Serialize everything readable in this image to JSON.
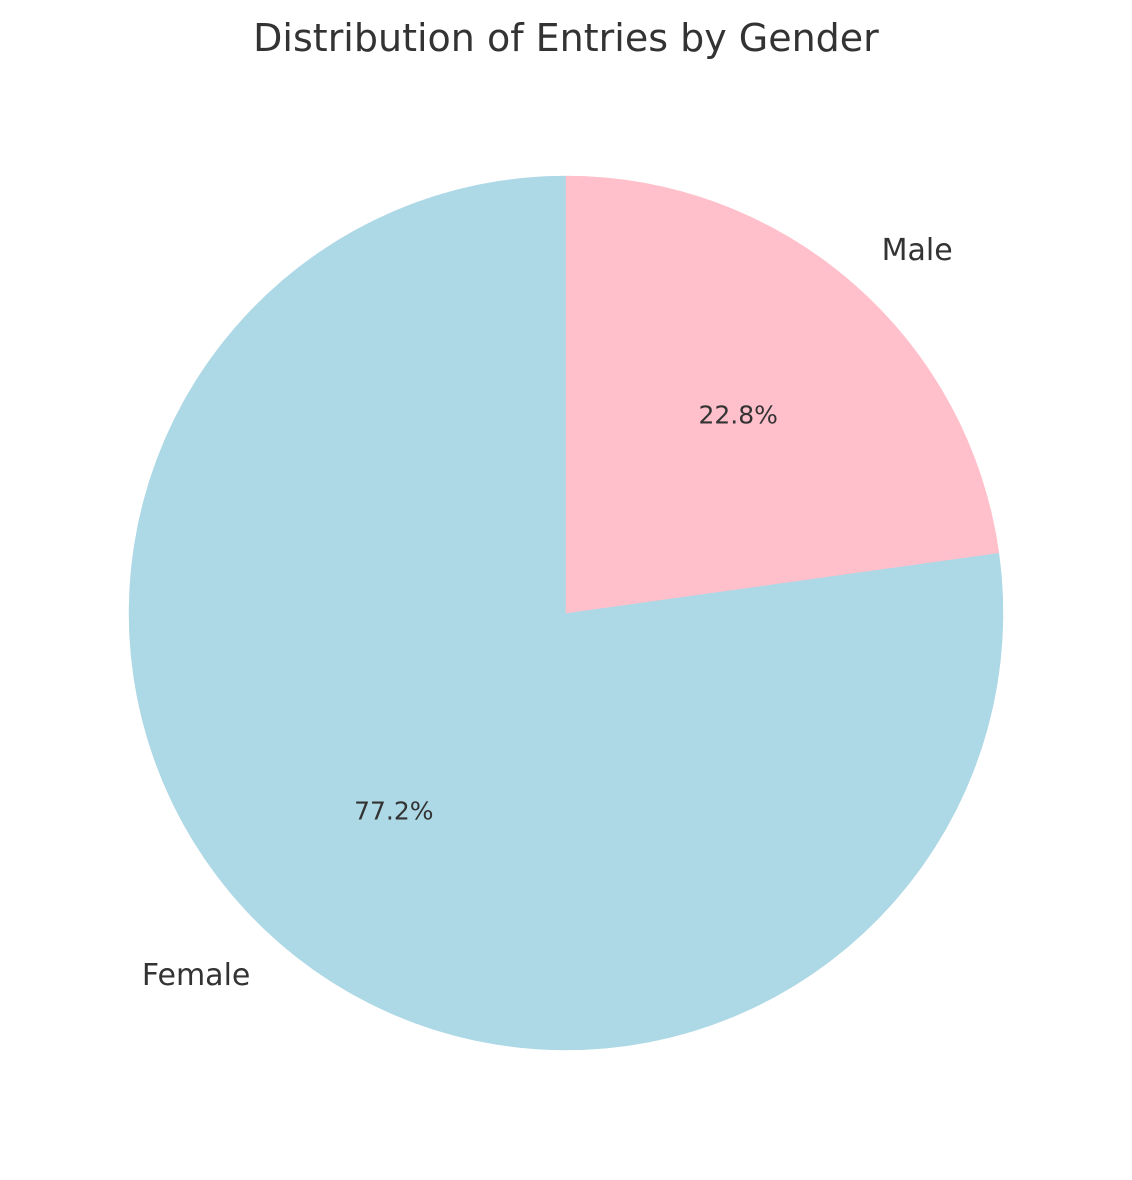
{
  "chart_data": {
    "type": "pie",
    "title": "Distribution of Entries by Gender",
    "start_angle_deg": 90,
    "direction": "counterclockwise",
    "slices": [
      {
        "label": "Female",
        "value": 77.2,
        "pct_label": "77.2%",
        "color": "#add8e6"
      },
      {
        "label": "Male",
        "value": 22.8,
        "pct_label": "22.8%",
        "color": "#ffc0cb"
      }
    ]
  }
}
